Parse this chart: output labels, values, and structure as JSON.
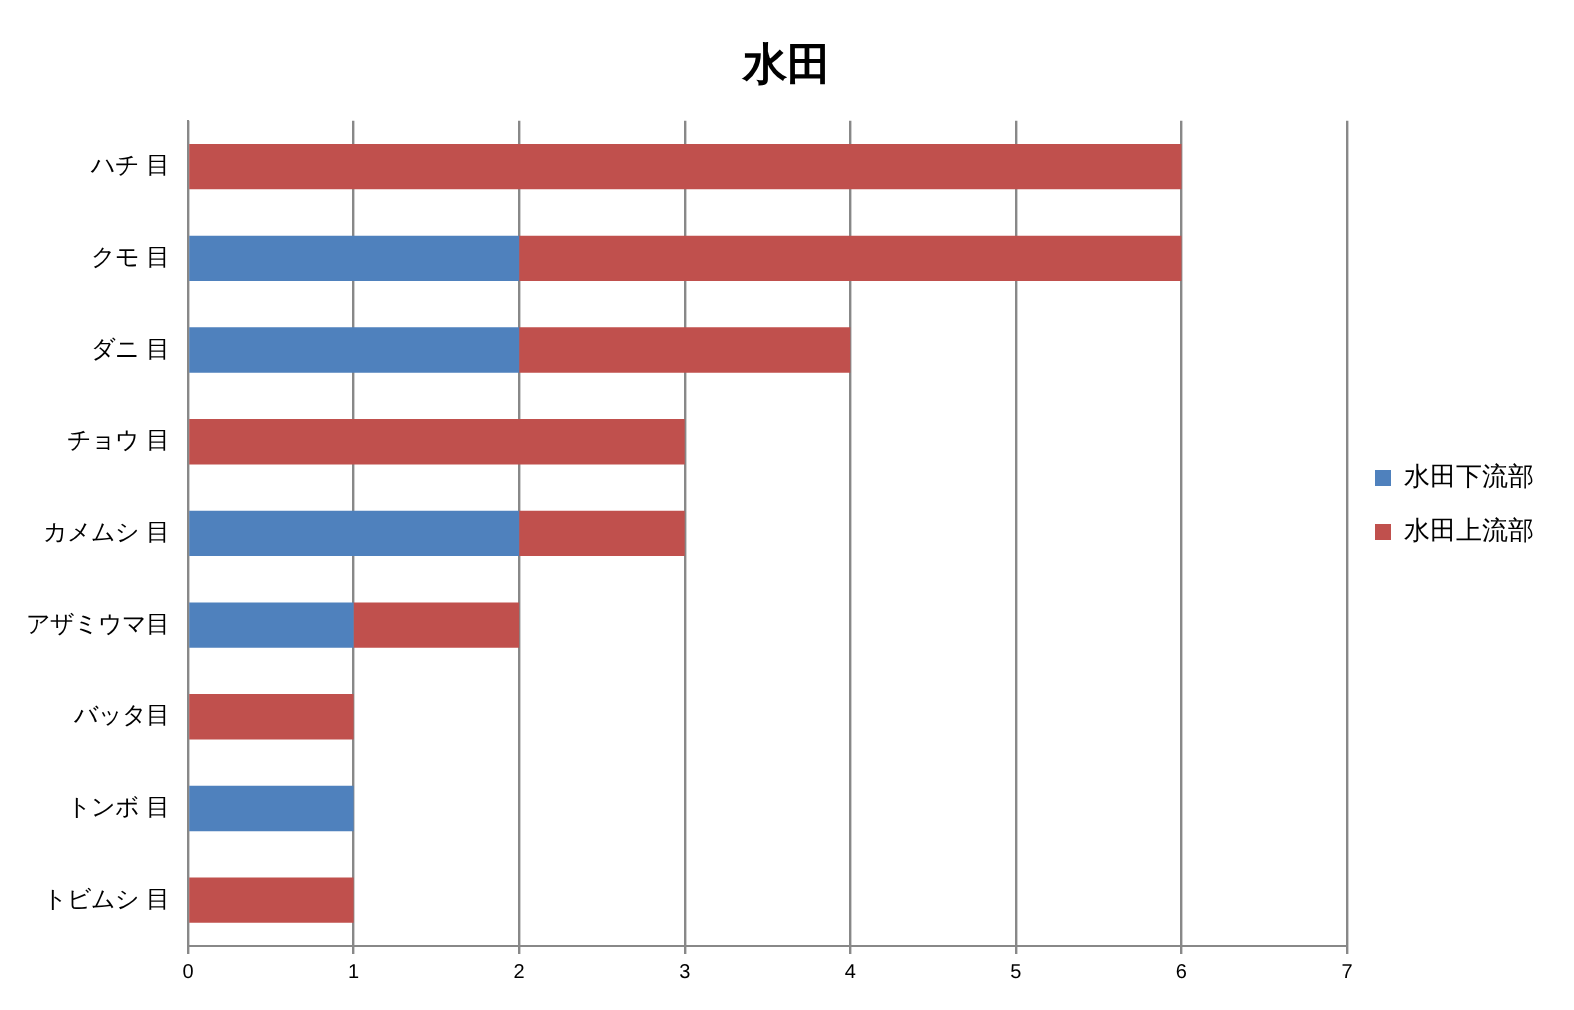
{
  "chart_data": {
    "type": "bar",
    "title": "水田",
    "orientation": "horizontal",
    "stacked": true,
    "categories": [
      "ハチ 目",
      "クモ 目",
      "ダニ 目",
      "チョウ 目",
      "カメムシ 目",
      "アザミウマ目",
      "バッタ目",
      "トンボ 目",
      "トビムシ 目"
    ],
    "series": [
      {
        "name": "水田下流部",
        "color": "#4f81bd",
        "values": [
          0,
          2,
          2,
          0,
          2,
          1,
          0,
          1,
          0
        ]
      },
      {
        "name": "水田上流部",
        "color": "#c0504d",
        "values": [
          6,
          4,
          2,
          3,
          1,
          1,
          1,
          0,
          1
        ]
      }
    ],
    "xlim": [
      0,
      7
    ],
    "xticks": [
      0,
      1,
      2,
      3,
      4,
      5,
      6,
      7
    ],
    "grid": "x",
    "legend": "right"
  }
}
